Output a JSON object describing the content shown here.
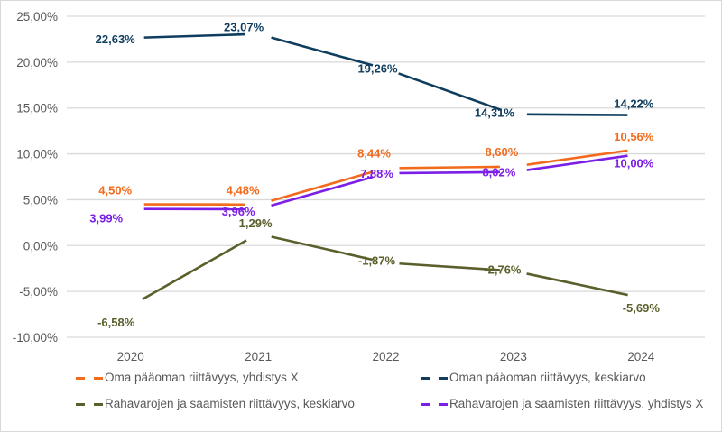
{
  "chart_data": {
    "type": "line",
    "title": "",
    "xlabel": "",
    "ylabel": "",
    "categories": [
      "2020",
      "2021",
      "2022",
      "2023",
      "2024"
    ],
    "ylim": [
      -10,
      25
    ],
    "yticks": [
      25,
      20,
      15,
      10,
      5,
      0,
      -5,
      -10
    ],
    "ytick_labels": [
      "25,00%",
      "20,00%",
      "15,00%",
      "10,00%",
      "5,00%",
      "0,00%",
      "-5,00%",
      "-10,00%"
    ],
    "grid": true,
    "legend_position": "bottom",
    "series": [
      {
        "name": "Oma pääoman riittävyys, yhdistys X",
        "color": "#F26B1D",
        "values": [
          4.5,
          4.48,
          8.44,
          8.6,
          10.56
        ],
        "labels": [
          "4,50%",
          "4,48%",
          "8,44%",
          "8,60%",
          "10,56%"
        ]
      },
      {
        "name": "Oman pääoman riittävyys, keskiarvo",
        "color": "#0F3D5E",
        "values": [
          22.63,
          23.07,
          19.26,
          14.31,
          14.22
        ],
        "labels": [
          "22,63%",
          "23,07%",
          "19,26%",
          "14,31%",
          "14,22%"
        ]
      },
      {
        "name": "Rahavarojen ja saamisten riittävyys, keskiarvo",
        "color": "#5B5F2B",
        "values": [
          -6.58,
          1.29,
          -1.87,
          -2.76,
          -5.69
        ],
        "labels": [
          "-6,58%",
          "1,29%",
          "-1,87%",
          "-2,76%",
          "-5,69%"
        ]
      },
      {
        "name": "Rahavarojen ja saamisten riittävyys, yhdistys X",
        "color": "#7B1FE6",
        "values": [
          3.99,
          3.96,
          7.88,
          8.02,
          10.0
        ],
        "labels": [
          "3,99%",
          "3,96%",
          "7,88%",
          "8,02%",
          "10,00%"
        ]
      }
    ]
  }
}
